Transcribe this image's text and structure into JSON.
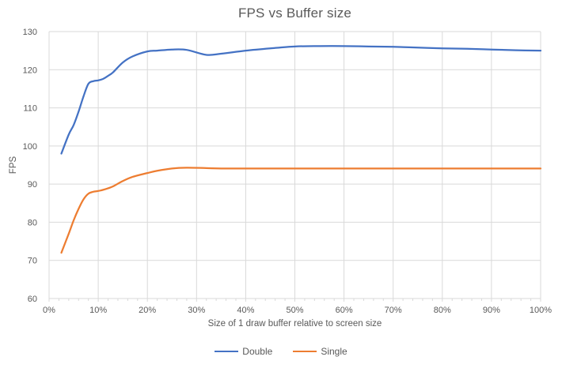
{
  "chart_data": {
    "type": "line",
    "title": "FPS vs Buffer size",
    "xlabel": "Size of 1 draw buffer relative to screen size",
    "ylabel": "FPS",
    "xlim": [
      0,
      100
    ],
    "ylim": [
      60,
      130
    ],
    "x_tick_step": 10,
    "x_minor_tick_step": 2,
    "y_tick_step": 10,
    "x_tick_suffix": "%",
    "grid": true,
    "smooth": true,
    "legend_position": "bottom",
    "series": [
      {
        "name": "Double",
        "color": "#4472C4",
        "x": [
          2.5,
          4,
          5,
          6,
          7,
          8,
          9,
          10,
          11,
          12,
          13,
          15,
          17,
          20,
          22,
          25,
          28,
          32,
          35,
          40,
          45,
          50,
          55,
          60,
          65,
          70,
          75,
          80,
          85,
          90,
          95,
          100
        ],
        "y": [
          98,
          103,
          105.5,
          109,
          113,
          116.3,
          117,
          117.2,
          117.6,
          118.4,
          119.3,
          121.9,
          123.5,
          124.8,
          125,
          125.3,
          125.2,
          123.9,
          124.2,
          125,
          125.6,
          126.1,
          126.2,
          126.2,
          126.1,
          126,
          125.8,
          125.6,
          125.5,
          125.3,
          125.1,
          125
        ]
      },
      {
        "name": "Single",
        "color": "#ED7D31",
        "x": [
          2.5,
          4,
          5,
          6,
          7,
          8,
          9,
          10,
          11,
          12,
          13,
          15,
          17,
          20,
          22,
          25,
          28,
          32,
          35,
          40,
          45,
          50,
          55,
          60,
          65,
          70,
          75,
          80,
          85,
          90,
          95,
          100
        ],
        "y": [
          72,
          77,
          80.5,
          83.5,
          86,
          87.5,
          88,
          88.2,
          88.5,
          88.9,
          89.4,
          90.8,
          91.9,
          92.9,
          93.5,
          94.1,
          94.3,
          94.2,
          94.1,
          94.1,
          94.1,
          94.1,
          94.1,
          94.1,
          94.1,
          94.1,
          94.1,
          94.1,
          94.1,
          94.1,
          94.1,
          94.1
        ]
      }
    ]
  },
  "style": {
    "background": "#FFFFFF",
    "text_color": "#595959",
    "grid_color": "#D9D9D9",
    "axis_color": "#D9D9D9"
  }
}
